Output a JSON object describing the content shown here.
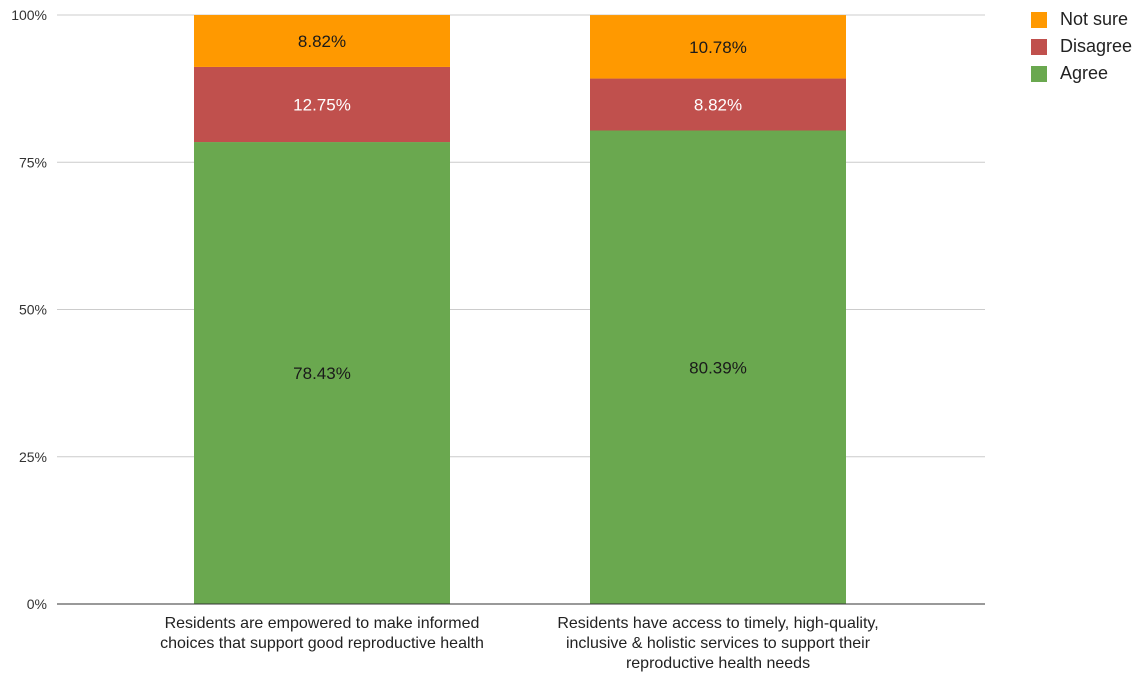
{
  "chart_data": {
    "type": "bar",
    "stacked": true,
    "title": "",
    "xlabel": "",
    "ylabel": "",
    "ylim": [
      0,
      100
    ],
    "y_ticks": [
      "0%",
      "25%",
      "50%",
      "75%",
      "100%"
    ],
    "grid": true,
    "legend_position": "top-right",
    "categories": [
      [
        "Residents are empowered to make informed",
        "choices that support good reproductive health"
      ],
      [
        "Residents have access to timely, high-quality,",
        "inclusive & holistic services to support their",
        "reproductive health needs"
      ]
    ],
    "series": [
      {
        "name": "Agree",
        "color": "#6aa84f",
        "label_color": "#1a1a1a",
        "values": [
          78.43,
          80.39
        ],
        "labels": [
          "78.43%",
          "80.39%"
        ]
      },
      {
        "name": "Disagree",
        "color": "#c0504d",
        "label_color": "#ffffff",
        "values": [
          12.75,
          8.82
        ],
        "labels": [
          "12.75%",
          "8.82%"
        ]
      },
      {
        "name": "Not sure",
        "color": "#ff9900",
        "label_color": "#1a1a1a",
        "values": [
          8.82,
          10.78
        ],
        "labels": [
          "8.82%",
          "10.78%"
        ]
      }
    ],
    "legend_order": [
      "Not sure",
      "Disagree",
      "Agree"
    ]
  }
}
